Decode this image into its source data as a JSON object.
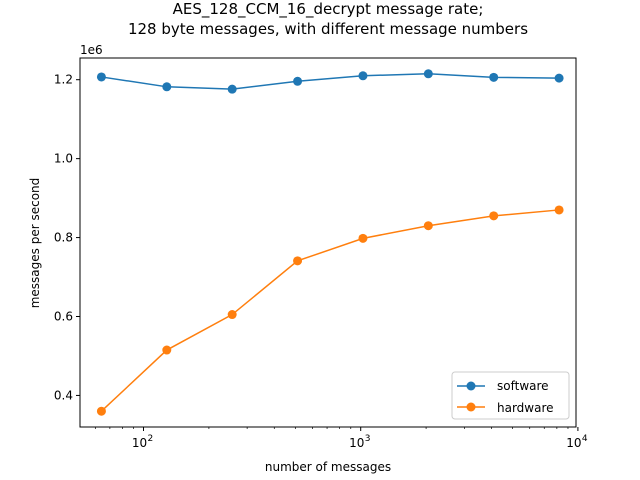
{
  "chart_data": {
    "type": "line",
    "title_lines": [
      "AES_128_CCM_16_decrypt message rate;",
      "128 byte messages, with different message numbers"
    ],
    "xlabel": "number of messages",
    "ylabel": "messages per second",
    "x_scale": "log",
    "x_scale_base": 10,
    "xlim": [
      51,
      9800
    ],
    "ylim": [
      0.32,
      1.255
    ],
    "y_multiplier_label": "1e6",
    "x_ticks": [
      {
        "value": 100,
        "label": "10",
        "exp": "2"
      },
      {
        "value": 1000,
        "label": "10",
        "exp": "3"
      },
      {
        "value": 10000,
        "label": "10",
        "exp": "4"
      }
    ],
    "y_ticks": [
      {
        "value": 0.4,
        "label": "0.4"
      },
      {
        "value": 0.6,
        "label": "0.6"
      },
      {
        "value": 0.8,
        "label": "0.8"
      },
      {
        "value": 1.0,
        "label": "1.0"
      },
      {
        "value": 1.2,
        "label": "1.2"
      }
    ],
    "x": [
      64,
      128,
      256,
      512,
      1024,
      2048,
      4096,
      8192
    ],
    "series": [
      {
        "name": "software",
        "color": "#1f77b4",
        "values": [
          1.207,
          1.182,
          1.176,
          1.196,
          1.21,
          1.215,
          1.206,
          1.204
        ]
      },
      {
        "name": "hardware",
        "color": "#ff7f0e",
        "values": [
          0.36,
          0.515,
          0.605,
          0.741,
          0.798,
          0.83,
          0.855,
          0.87
        ]
      }
    ],
    "legend_position": "lower-right",
    "grid": false
  }
}
